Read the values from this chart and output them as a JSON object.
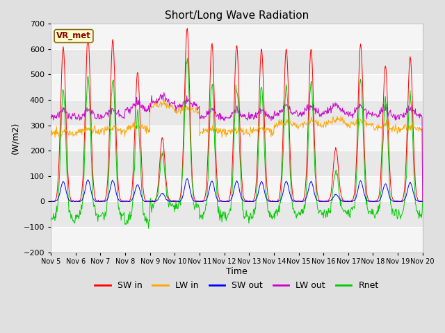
{
  "title": "Short/Long Wave Radiation",
  "ylabel": "(W/m2)",
  "xlabel": "Time",
  "ylim": [
    -200,
    700
  ],
  "yticks": [
    -200,
    -100,
    0,
    100,
    200,
    300,
    400,
    500,
    600,
    700
  ],
  "colors": {
    "SW_in": "#ff0000",
    "LW_in": "#ffa500",
    "SW_out": "#0000ff",
    "LW_out": "#cc00cc",
    "Rnet": "#00cc00"
  },
  "station_label": "VR_met",
  "x_tick_labels": [
    "Nov 5",
    "Nov 6",
    "Nov 7",
    "Nov 8",
    "Nov 9",
    "Nov 10",
    "Nov 11",
    "Nov 12",
    "Nov 13",
    "Nov 14",
    "Nov 15",
    "Nov 16",
    "Nov 17",
    "Nov 18",
    "Nov 19",
    "Nov 20"
  ],
  "n_days": 15,
  "sw_peaks": [
    605,
    650,
    635,
    510,
    250,
    680,
    620,
    615,
    600,
    600,
    600,
    210,
    620,
    535,
    570
  ],
  "lw_in_base": [
    260,
    270,
    275,
    280,
    370,
    350,
    270,
    265,
    270,
    295,
    300,
    305,
    300,
    280,
    280
  ],
  "lw_out_base": [
    330,
    330,
    335,
    360,
    385,
    370,
    330,
    330,
    330,
    345,
    345,
    350,
    345,
    335,
    335
  ]
}
